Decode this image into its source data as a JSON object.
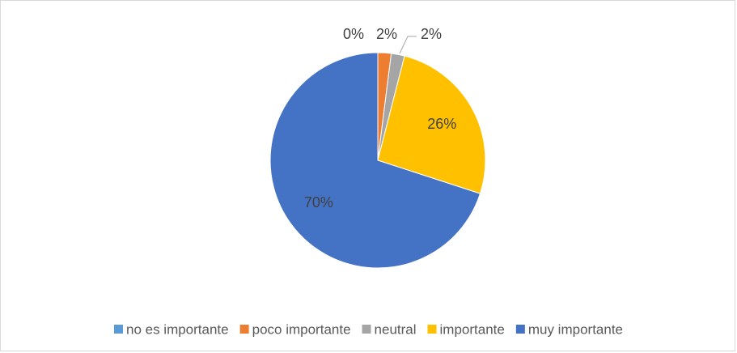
{
  "chart_data": {
    "type": "pie",
    "categories": [
      "no es importante",
      "poco importante",
      "neutral",
      "importante",
      "muy importante"
    ],
    "values": [
      0,
      2,
      2,
      26,
      70
    ],
    "value_labels": [
      "0%",
      "2%",
      "2%",
      "26%",
      "70%"
    ],
    "colors": [
      "#5b9bd5",
      "#ed7d31",
      "#a5a5a5",
      "#ffc000",
      "#4472c4"
    ],
    "legend": "bottom"
  }
}
